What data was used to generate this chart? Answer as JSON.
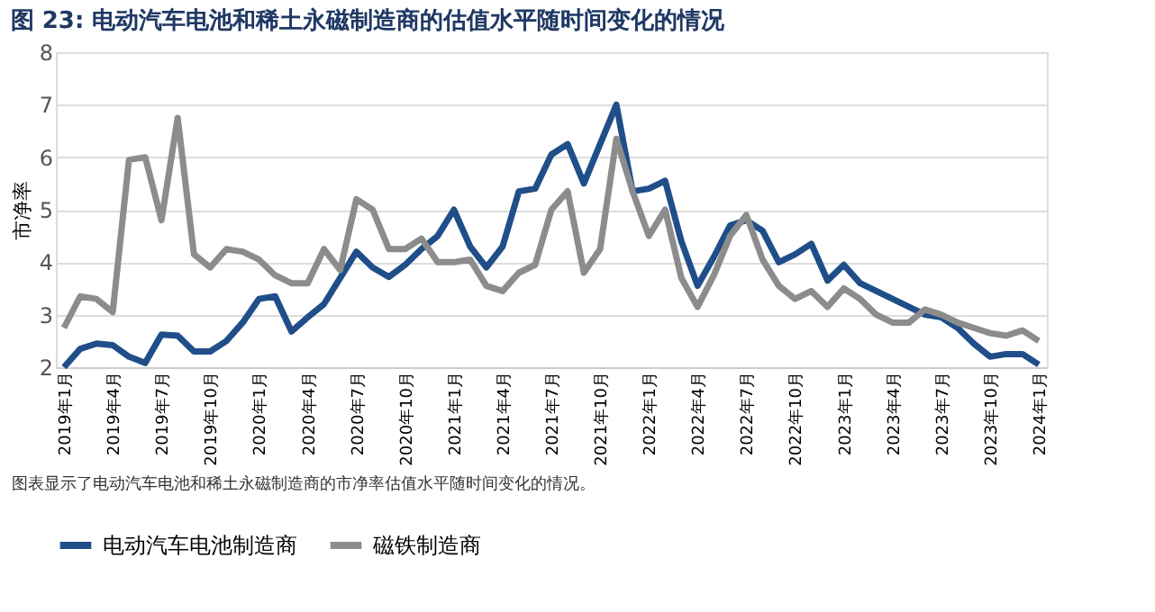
{
  "chart_data": {
    "type": "line",
    "title": "图 23: 电动汽车电池和稀土永磁制造商的估值水平随时间变化的情况",
    "ylabel": "市净率",
    "categories": [
      "2019年1月",
      null,
      null,
      "2019年4月",
      null,
      null,
      "2019年7月",
      null,
      null,
      "2019年10月",
      null,
      null,
      "2020年1月",
      null,
      null,
      "2020年4月",
      null,
      null,
      "2020年7月",
      null,
      null,
      "2020年10月",
      null,
      null,
      "2021年1月",
      null,
      null,
      "2021年4月",
      null,
      null,
      "2021年7月",
      null,
      null,
      "2021年10月",
      null,
      null,
      "2022年1月",
      null,
      null,
      "2022年4月",
      null,
      null,
      "2022年7月",
      null,
      null,
      "2022年10月",
      null,
      null,
      "2023年1月",
      null,
      null,
      "2023年4月",
      null,
      null,
      "2023年7月",
      null,
      null,
      "2023年10月",
      null,
      null,
      "2024年1月"
    ],
    "series": [
      {
        "name": "电动汽车电池制造商",
        "color": "#1f4e89",
        "values": [
          2.0,
          2.35,
          2.45,
          2.42,
          2.2,
          2.08,
          2.62,
          2.6,
          2.3,
          2.3,
          2.5,
          2.85,
          3.3,
          3.35,
          2.68,
          2.95,
          3.2,
          3.7,
          4.2,
          3.9,
          3.72,
          3.95,
          4.25,
          4.5,
          5.0,
          4.3,
          3.9,
          4.3,
          5.35,
          5.4,
          6.05,
          6.25,
          5.5,
          6.25,
          7.0,
          5.35,
          5.4,
          5.55,
          4.4,
          3.55,
          4.1,
          4.7,
          4.8,
          4.6,
          4.0,
          4.15,
          4.35,
          3.65,
          3.95,
          3.6,
          3.45,
          3.3,
          3.15,
          3.0,
          2.95,
          2.75,
          2.45,
          2.2,
          2.25,
          2.25,
          2.05
        ]
      },
      {
        "name": "磁铁制造商",
        "color": "#8c8c8c",
        "values": [
          2.75,
          3.35,
          3.3,
          3.05,
          5.95,
          6.0,
          4.8,
          6.75,
          4.15,
          3.9,
          4.25,
          4.2,
          4.05,
          3.75,
          3.6,
          3.6,
          4.25,
          3.85,
          5.2,
          5.0,
          4.25,
          4.25,
          4.45,
          4.0,
          4.0,
          4.05,
          3.55,
          3.45,
          3.8,
          3.95,
          5.0,
          5.35,
          3.8,
          4.25,
          6.35,
          5.35,
          4.5,
          5.0,
          3.7,
          3.15,
          3.75,
          4.5,
          4.9,
          4.05,
          3.55,
          3.3,
          3.45,
          3.15,
          3.5,
          3.3,
          3.0,
          2.85,
          2.85,
          3.1,
          3.0,
          2.85,
          2.75,
          2.65,
          2.6,
          2.7,
          2.5
        ]
      }
    ],
    "ylim": [
      2,
      8
    ],
    "yticks": [
      2,
      3,
      4,
      5,
      6,
      7,
      8
    ],
    "grid": "y",
    "legend": "bottom",
    "marker": "none",
    "line_style": "solid",
    "annotations": [
      "图表显示了电动汽车电池和稀土永磁制造商的市净率估值水平随时间变化的情况。"
    ]
  }
}
